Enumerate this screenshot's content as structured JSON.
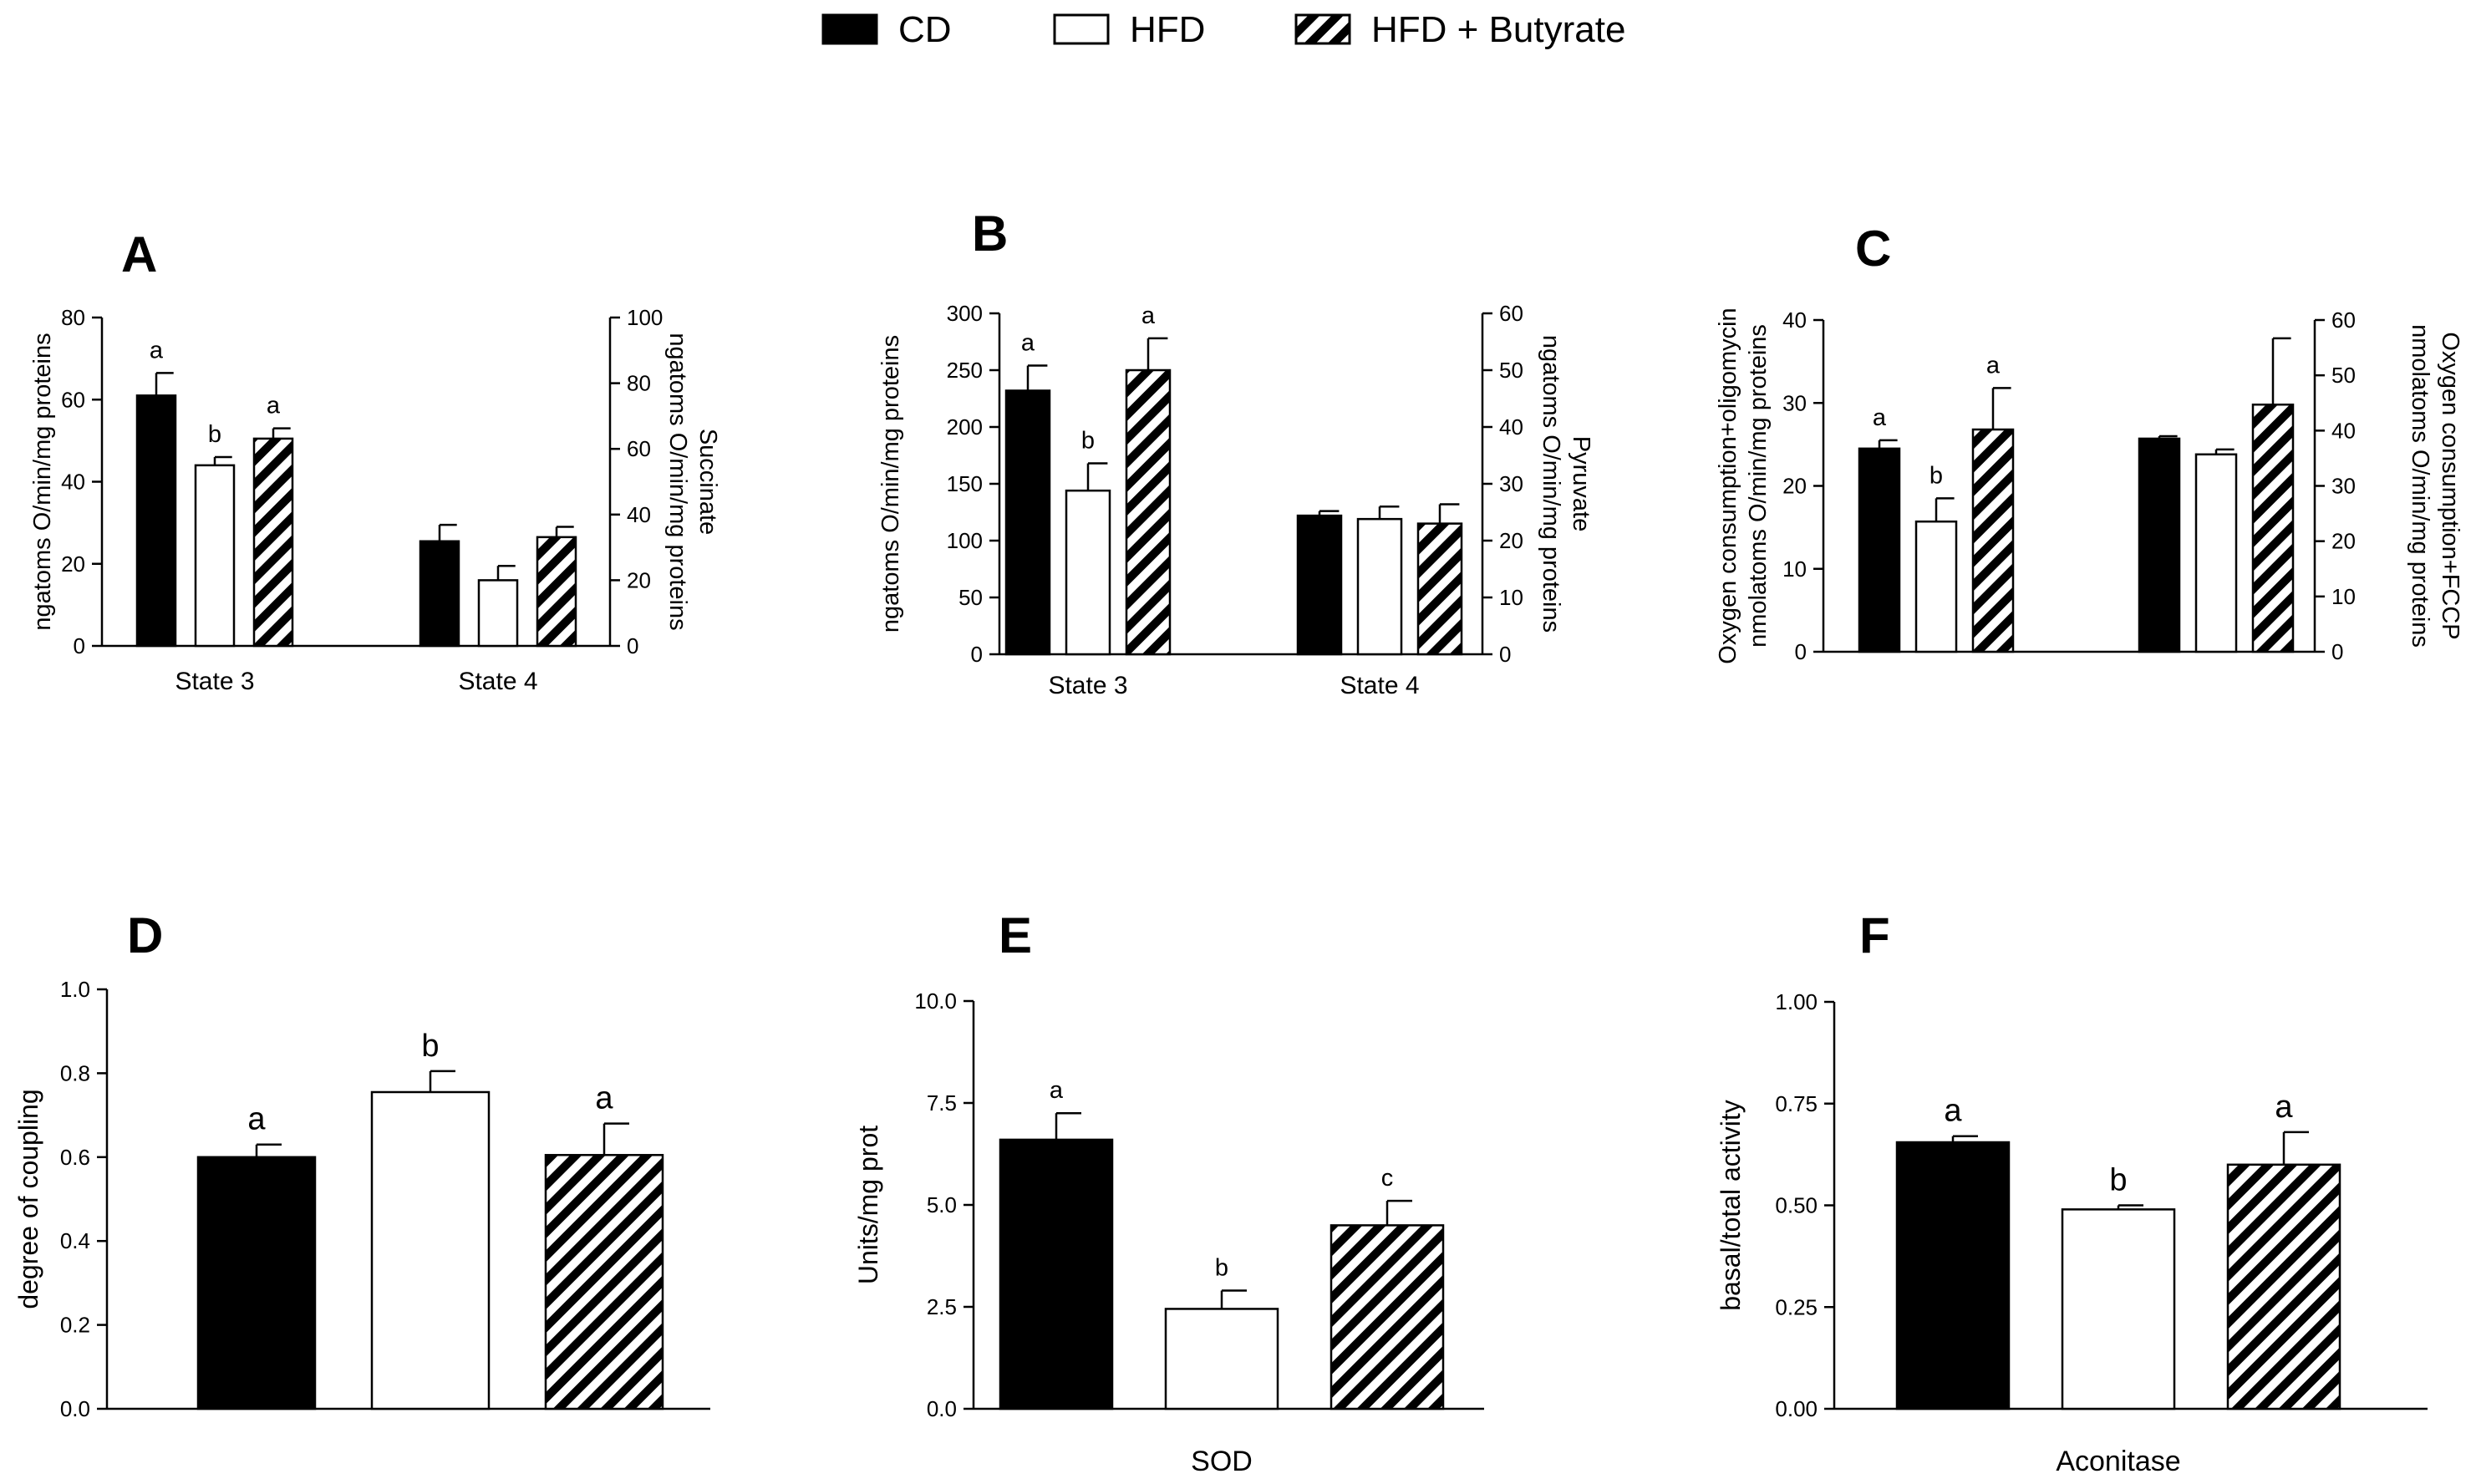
{
  "legend": [
    {
      "label": "CD",
      "style": "solid"
    },
    {
      "label": "HFD",
      "style": "open"
    },
    {
      "label": "HFD + Butyrate",
      "style": "hatched"
    }
  ],
  "colors": {
    "bar_fill": "#000000",
    "open_fill": "#ffffff",
    "axis": "#000000"
  },
  "chart_data": [
    {
      "panel": "A",
      "type": "bar",
      "categories": [
        "State 3",
        "State 4"
      ],
      "ylabel": "ngatoms O/min/mg proteins",
      "ylim": [
        0,
        80
      ],
      "yticks": [
        0,
        20,
        40,
        60,
        80
      ],
      "ylabel_right": [
        "Succinate",
        "ngatoms O/min/mg proteins"
      ],
      "ylim_right": [
        0,
        100
      ],
      "yticks_right": [
        0,
        20,
        40,
        60,
        80,
        100
      ],
      "series": [
        {
          "name": "CD",
          "values": [
            61,
            25.5
          ],
          "errors": [
            5.5,
            4
          ]
        },
        {
          "name": "HFD",
          "values": [
            44,
            16
          ],
          "errors": [
            2,
            3.5
          ]
        },
        {
          "name": "HFD + Butyrate",
          "values": [
            50.5,
            26.5
          ],
          "errors": [
            2.5,
            2.5
          ]
        }
      ],
      "letters": [
        [
          "a",
          "b",
          "a"
        ],
        [
          "",
          "",
          ""
        ]
      ]
    },
    {
      "panel": "B",
      "type": "bar",
      "categories": [
        "State 3",
        "State 4"
      ],
      "ylabel": "ngatoms O/min/mg proteins",
      "ylim": [
        0,
        300
      ],
      "yticks": [
        0,
        50,
        100,
        150,
        200,
        250,
        300
      ],
      "ylabel_right": [
        "Pyruvate",
        "ngatoms O/min/mg proteins"
      ],
      "ylim_right": [
        0,
        60
      ],
      "yticks_right": [
        0,
        10,
        20,
        30,
        40,
        50,
        60
      ],
      "series": [
        {
          "name": "CD",
          "values": [
            232,
            122
          ],
          "errors": [
            22,
            4
          ]
        },
        {
          "name": "HFD",
          "values": [
            144,
            119
          ],
          "errors": [
            24,
            11
          ]
        },
        {
          "name": "HFD + Butyrate",
          "values": [
            250,
            115
          ],
          "errors": [
            28,
            17
          ]
        }
      ],
      "letters": [
        [
          "a",
          "b",
          "a"
        ],
        [
          "",
          "",
          ""
        ]
      ]
    },
    {
      "panel": "C",
      "type": "bar",
      "categories": [
        "",
        ""
      ],
      "ylabel": [
        "Oxygen consumption+oligomycin",
        "nmolatoms O/min/mg proteins"
      ],
      "ylim": [
        0,
        40
      ],
      "yticks": [
        0,
        10,
        20,
        30,
        40
      ],
      "ylabel_right": [
        "Oxygen consumption+FCCP",
        "nmolatoms O/min/mg proteins"
      ],
      "ylim_right": [
        0,
        60
      ],
      "yticks_right": [
        0,
        10,
        20,
        30,
        40,
        50,
        60
      ],
      "series": [
        {
          "name": "CD",
          "values": [
            24.5,
            25.7
          ],
          "errors": [
            1,
            0.3
          ]
        },
        {
          "name": "HFD",
          "values": [
            15.7,
            23.8
          ],
          "errors": [
            2.8,
            0.6
          ]
        },
        {
          "name": "HFD + Butyrate",
          "values": [
            26.8,
            29.8
          ],
          "errors": [
            5,
            8
          ]
        }
      ],
      "letters": [
        [
          "a",
          "b",
          "a"
        ],
        [
          "",
          "",
          ""
        ]
      ]
    },
    {
      "panel": "D",
      "type": "bar",
      "categories": [
        ""
      ],
      "ylabel": "degree of coupling",
      "ylim": [
        0,
        1.0
      ],
      "yticks": [
        "0.0",
        "0.2",
        "0.4",
        "0.6",
        "0.8",
        "1.0"
      ],
      "series": [
        {
          "name": "CD",
          "values": [
            0.6
          ],
          "errors": [
            0.03
          ]
        },
        {
          "name": "HFD",
          "values": [
            0.755
          ],
          "errors": [
            0.05
          ]
        },
        {
          "name": "HFD + Butyrate",
          "values": [
            0.605
          ],
          "errors": [
            0.075
          ]
        }
      ],
      "letters": [
        [
          "a",
          "b",
          "a"
        ]
      ]
    },
    {
      "panel": "E",
      "type": "bar",
      "categories": [
        "SOD"
      ],
      "ylabel": "Units/mg prot",
      "ylim": [
        0,
        10.0
      ],
      "yticks": [
        "0.0",
        "2.5",
        "5.0",
        "7.5",
        "10.0"
      ],
      "series": [
        {
          "name": "CD",
          "values": [
            6.6
          ],
          "errors": [
            0.65
          ]
        },
        {
          "name": "HFD",
          "values": [
            2.45
          ],
          "errors": [
            0.45
          ]
        },
        {
          "name": "HFD + Butyrate",
          "values": [
            4.5
          ],
          "errors": [
            0.6
          ]
        }
      ],
      "letters": [
        [
          "a",
          "b",
          "c"
        ]
      ]
    },
    {
      "panel": "F",
      "type": "bar",
      "categories": [
        "Aconitase"
      ],
      "ylabel": "basal/total activity",
      "ylim": [
        0,
        1.0
      ],
      "yticks": [
        "0.00",
        "0.25",
        "0.50",
        "0.75",
        "1.00"
      ],
      "series": [
        {
          "name": "CD",
          "values": [
            0.655
          ],
          "errors": [
            0.015
          ]
        },
        {
          "name": "HFD",
          "values": [
            0.49
          ],
          "errors": [
            0.01
          ]
        },
        {
          "name": "HFD + Butyrate",
          "values": [
            0.6
          ],
          "errors": [
            0.08
          ]
        }
      ],
      "letters": [
        [
          "a",
          "b",
          "a"
        ]
      ]
    }
  ]
}
